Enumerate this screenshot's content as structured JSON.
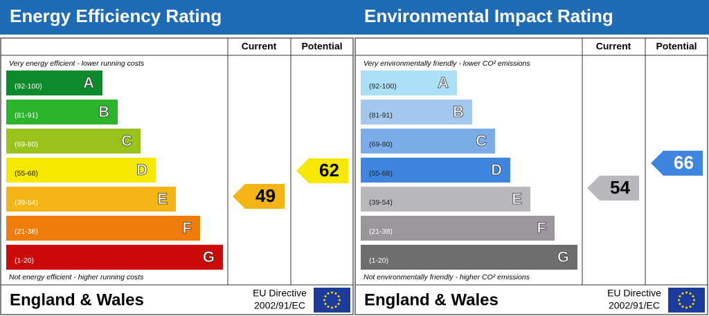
{
  "panels": [
    {
      "title": "Energy Efficiency Rating",
      "current_label": "Current",
      "potential_label": "Potential",
      "top_note": "Very energy efficient - lower running costs",
      "bottom_note": "Not energy efficient - higher running costs",
      "bands": [
        {
          "range": "(92-100)",
          "letter": "A"
        },
        {
          "range": "(81-91)",
          "letter": "B"
        },
        {
          "range": "(69-80)",
          "letter": "C"
        },
        {
          "range": "(55-68)",
          "letter": "D"
        },
        {
          "range": "(39-54)",
          "letter": "E"
        },
        {
          "range": "(21-38)",
          "letter": "F"
        },
        {
          "range": "(1-20)",
          "letter": "G"
        }
      ],
      "current": 49,
      "potential": 62,
      "footer": "England & Wales",
      "directive": [
        "EU Directive",
        "2002/91/EC"
      ]
    },
    {
      "title": "Environmental Impact Rating",
      "current_label": "Current",
      "potential_label": "Potential",
      "top_note": "Very environmentally friendly - lower CO² emissions",
      "bottom_note": "Not environmentally friendly - higher CO² emissions",
      "bands": [
        {
          "range": "(92-100)",
          "letter": "A"
        },
        {
          "range": "(81-91)",
          "letter": "B"
        },
        {
          "range": "(69-80)",
          "letter": "C"
        },
        {
          "range": "(55-68)",
          "letter": "D"
        },
        {
          "range": "(39-54)",
          "letter": "E"
        },
        {
          "range": "(21-38)",
          "letter": "F"
        },
        {
          "range": "(1-20)",
          "letter": "G"
        }
      ],
      "current": 54,
      "potential": 66,
      "footer": "England & Wales",
      "directive": [
        "EU Directive",
        "2002/91/EC"
      ]
    }
  ]
}
